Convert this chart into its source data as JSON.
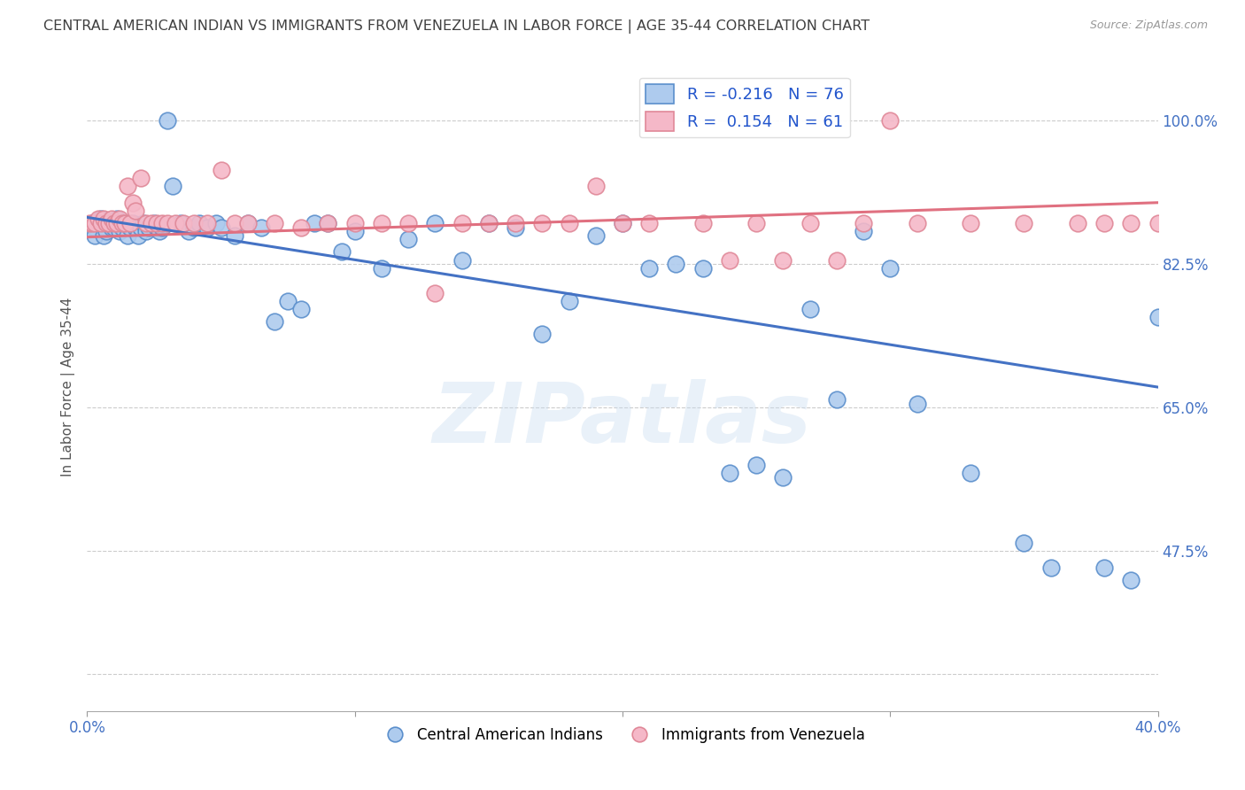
{
  "title": "CENTRAL AMERICAN INDIAN VS IMMIGRANTS FROM VENEZUELA IN LABOR FORCE | AGE 35-44 CORRELATION CHART",
  "source": "Source: ZipAtlas.com",
  "ylabel": "In Labor Force | Age 35-44",
  "xlim": [
    0.0,
    0.4
  ],
  "ylim": [
    0.28,
    1.07
  ],
  "xtick_positions": [
    0.0,
    0.1,
    0.2,
    0.3,
    0.4
  ],
  "xticklabels": [
    "0.0%",
    "",
    "",
    "",
    "40.0%"
  ],
  "ytick_positions": [
    0.325,
    0.475,
    0.65,
    0.825,
    1.0
  ],
  "yticklabels_right": [
    "",
    "47.5%",
    "65.0%",
    "82.5%",
    "100.0%"
  ],
  "color_blue": "#AECBEE",
  "color_pink": "#F5B8C8",
  "color_blue_edge": "#5B8FCC",
  "color_pink_edge": "#E08898",
  "color_blue_line": "#4472C4",
  "color_pink_line": "#E07080",
  "color_title": "#404040",
  "watermark_text": "ZIPatlas",
  "blue_x": [
    0.001,
    0.002,
    0.003,
    0.003,
    0.004,
    0.005,
    0.006,
    0.006,
    0.007,
    0.008,
    0.009,
    0.01,
    0.01,
    0.011,
    0.012,
    0.013,
    0.014,
    0.015,
    0.016,
    0.017,
    0.018,
    0.019,
    0.02,
    0.021,
    0.022,
    0.023,
    0.025,
    0.026,
    0.027,
    0.028,
    0.03,
    0.032,
    0.035,
    0.038,
    0.04,
    0.042,
    0.045,
    0.048,
    0.05,
    0.055,
    0.06,
    0.065,
    0.07,
    0.075,
    0.08,
    0.085,
    0.09,
    0.095,
    0.1,
    0.11,
    0.12,
    0.13,
    0.14,
    0.15,
    0.16,
    0.17,
    0.18,
    0.19,
    0.2,
    0.21,
    0.22,
    0.23,
    0.24,
    0.25,
    0.26,
    0.27,
    0.28,
    0.29,
    0.3,
    0.31,
    0.33,
    0.35,
    0.36,
    0.38,
    0.39,
    0.4
  ],
  "blue_y": [
    0.87,
    0.875,
    0.87,
    0.86,
    0.875,
    0.88,
    0.87,
    0.86,
    0.865,
    0.875,
    0.87,
    0.875,
    0.87,
    0.88,
    0.865,
    0.87,
    0.875,
    0.86,
    0.87,
    0.875,
    0.87,
    0.86,
    0.87,
    0.875,
    0.865,
    0.87,
    0.875,
    0.87,
    0.865,
    0.87,
    1.0,
    0.92,
    0.875,
    0.865,
    0.87,
    0.875,
    0.87,
    0.875,
    0.87,
    0.86,
    0.875,
    0.87,
    0.755,
    0.78,
    0.77,
    0.875,
    0.875,
    0.84,
    0.865,
    0.82,
    0.855,
    0.875,
    0.83,
    0.875,
    0.87,
    0.74,
    0.78,
    0.86,
    0.875,
    0.82,
    0.825,
    0.82,
    0.57,
    0.58,
    0.565,
    0.77,
    0.66,
    0.865,
    0.82,
    0.655,
    0.57,
    0.485,
    0.455,
    0.455,
    0.44,
    0.76
  ],
  "pink_x": [
    0.001,
    0.002,
    0.003,
    0.004,
    0.005,
    0.006,
    0.007,
    0.008,
    0.009,
    0.01,
    0.011,
    0.012,
    0.013,
    0.014,
    0.015,
    0.016,
    0.017,
    0.018,
    0.02,
    0.022,
    0.024,
    0.026,
    0.028,
    0.03,
    0.033,
    0.036,
    0.04,
    0.045,
    0.05,
    0.055,
    0.06,
    0.07,
    0.08,
    0.09,
    0.1,
    0.11,
    0.12,
    0.13,
    0.14,
    0.15,
    0.16,
    0.17,
    0.18,
    0.19,
    0.2,
    0.21,
    0.23,
    0.25,
    0.27,
    0.29,
    0.31,
    0.33,
    0.35,
    0.37,
    0.38,
    0.39,
    0.4,
    0.24,
    0.26,
    0.28,
    0.3
  ],
  "pink_y": [
    0.875,
    0.875,
    0.875,
    0.88,
    0.875,
    0.88,
    0.875,
    0.875,
    0.88,
    0.875,
    0.875,
    0.88,
    0.875,
    0.875,
    0.92,
    0.875,
    0.9,
    0.89,
    0.93,
    0.875,
    0.875,
    0.875,
    0.875,
    0.875,
    0.875,
    0.875,
    0.875,
    0.875,
    0.94,
    0.875,
    0.875,
    0.875,
    0.87,
    0.875,
    0.875,
    0.875,
    0.875,
    0.79,
    0.875,
    0.875,
    0.875,
    0.875,
    0.875,
    0.92,
    0.875,
    0.875,
    0.875,
    0.875,
    0.875,
    0.875,
    0.875,
    0.875,
    0.875,
    0.875,
    0.875,
    0.875,
    0.875,
    0.83,
    0.83,
    0.83,
    1.0
  ],
  "blue_trend_x": [
    0.0,
    0.4
  ],
  "blue_trend_y": [
    0.882,
    0.675
  ],
  "pink_trend_x": [
    0.0,
    0.4
  ],
  "pink_trend_y": [
    0.858,
    0.9
  ]
}
